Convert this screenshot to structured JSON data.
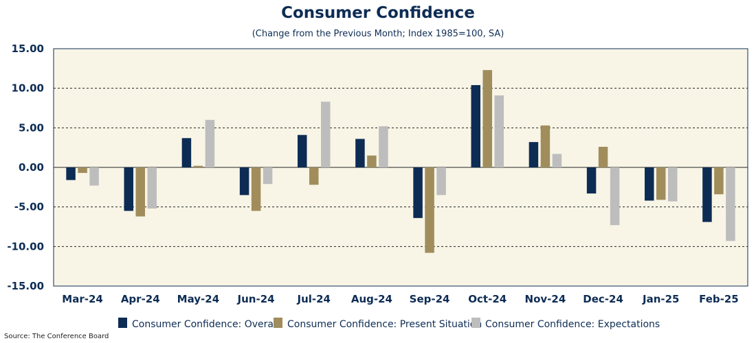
{
  "colors": {
    "overall": "#0d2c54",
    "present": "#a18d5c",
    "expectations": "#bdbdbd",
    "plot_bg": "#f8f5e6",
    "text": "#0d2c54"
  },
  "source": "Source: The Conference Board",
  "chart_data": {
    "type": "bar",
    "title": "Consumer Confidence",
    "subtitle": "(Change from the Previous Month; Index 1985=100, SA)",
    "categories": [
      "Mar-24",
      "Apr-24",
      "May-24",
      "Jun-24",
      "Jul-24",
      "Aug-24",
      "Sep-24",
      "Oct-24",
      "Nov-24",
      "Dec-24",
      "Jan-25",
      "Feb-25"
    ],
    "series": [
      {
        "name": "Consumer Confidence: Overall",
        "color": "#0d2c54",
        "values": [
          -1.6,
          -5.5,
          3.7,
          -3.5,
          4.1,
          3.6,
          -6.4,
          10.4,
          3.2,
          -3.3,
          -4.2,
          -6.9
        ]
      },
      {
        "name": "Consumer Confidence: Present Situation",
        "color": "#a18d5c",
        "values": [
          -0.7,
          -6.2,
          0.2,
          -5.5,
          -2.2,
          1.5,
          -10.8,
          12.3,
          5.3,
          2.6,
          -4.1,
          -3.4
        ]
      },
      {
        "name": "Consumer Confidence: Expectations",
        "color": "#bdbdbd",
        "values": [
          -2.3,
          -5.2,
          6.0,
          -2.1,
          8.3,
          5.2,
          -3.5,
          9.1,
          1.7,
          -7.3,
          -4.3,
          -9.3
        ]
      }
    ],
    "yticks": [
      "15.00",
      "10.00",
      "5.00",
      "0.00",
      "-5.00",
      "-10.00",
      "-15.00"
    ],
    "ylim": [
      -15,
      15
    ],
    "grid": "dashed horizontal",
    "legend_position": "bottom"
  }
}
